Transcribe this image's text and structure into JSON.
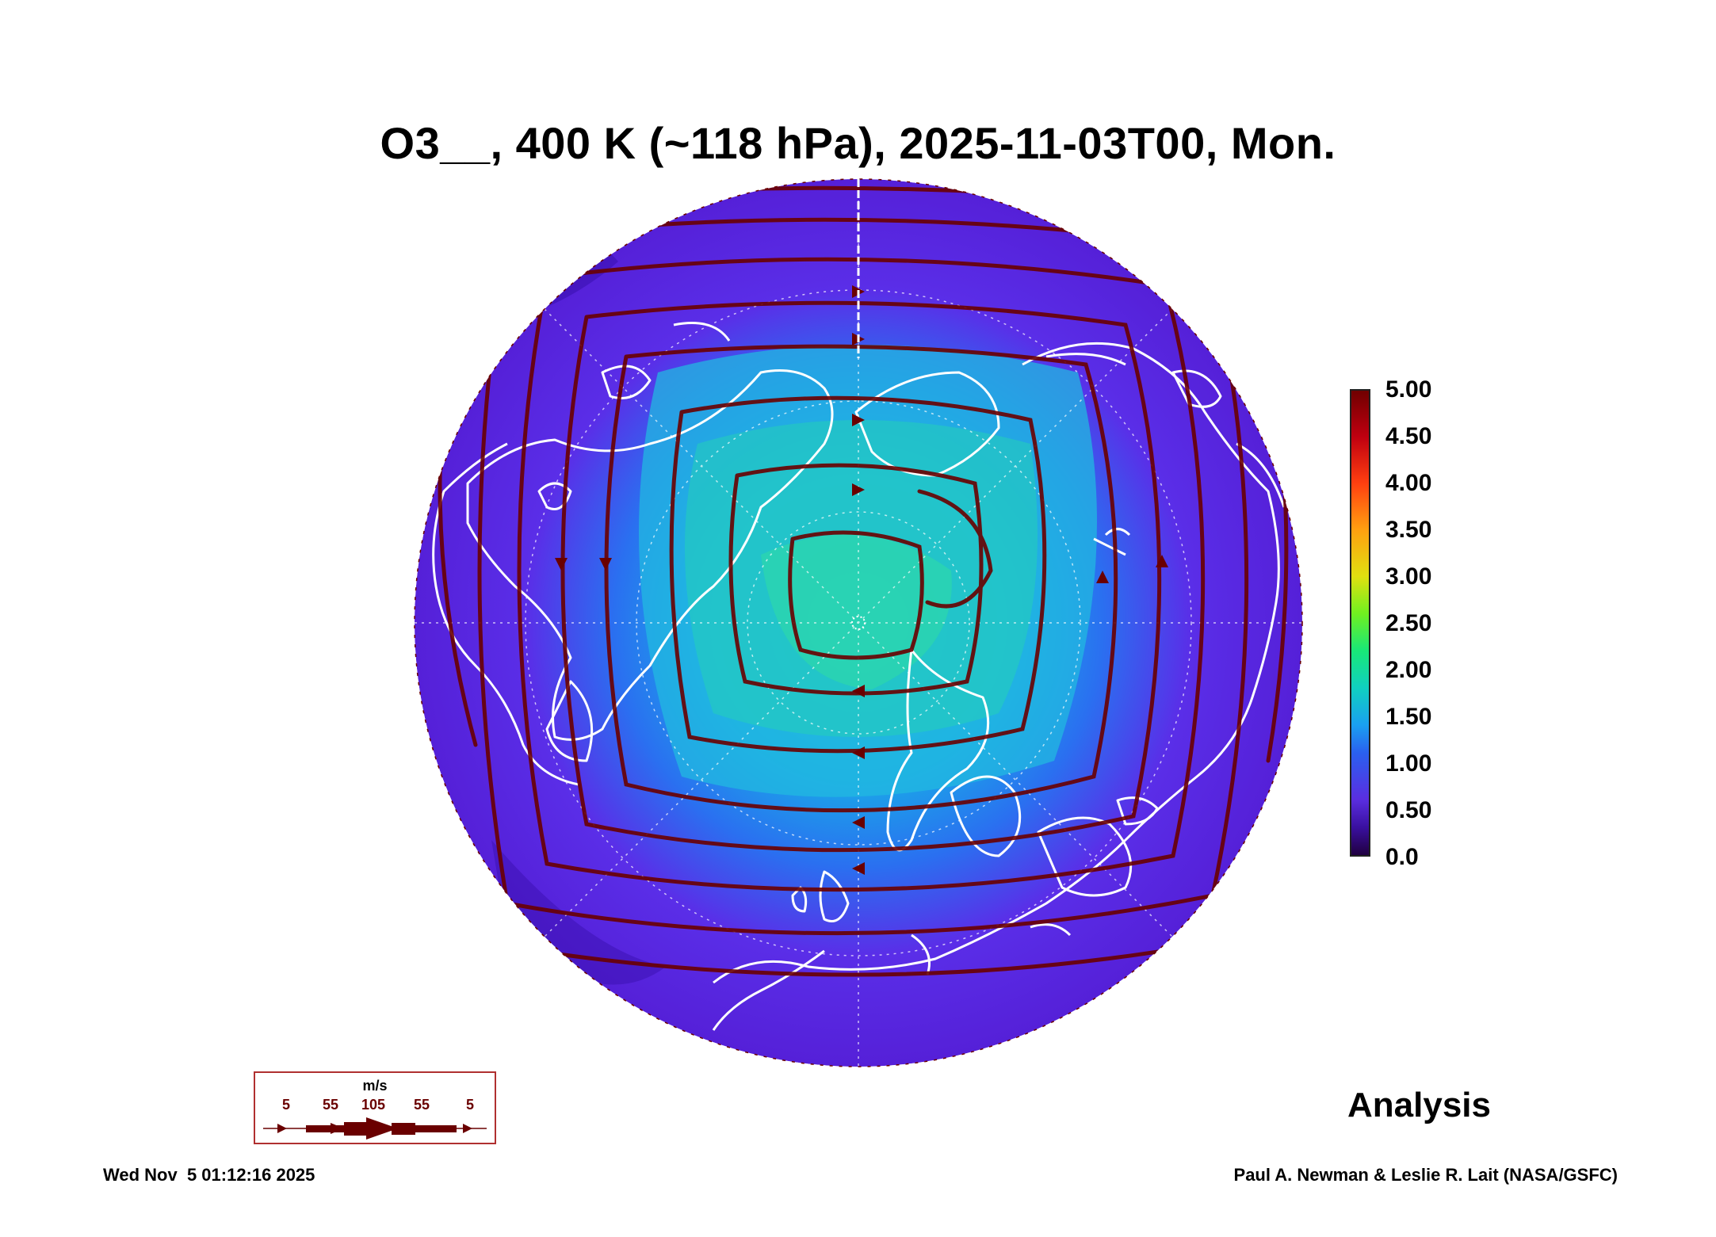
{
  "title": "O3__, 400 K (~118 hPa), 2025-11-03T00, Mon.",
  "colorbar": {
    "labels": [
      "5.00",
      "4.50",
      "4.00",
      "3.50",
      "3.00",
      "2.50",
      "2.00",
      "1.50",
      "1.00",
      "0.50",
      "0.0"
    ]
  },
  "legend": {
    "unit": "m/s",
    "values": [
      "5",
      "55",
      "105",
      "55",
      "5"
    ]
  },
  "analysis_label": "Analysis",
  "timestamp": "Wed Nov  5 01:12:16 2025",
  "credit": "Paul A. Newman & Leslie R. Lait (NASA/GSFC)",
  "colors": {
    "background_field": "#5a26e0",
    "high_ozone": "#20c8d8",
    "streamline": "#6a0000",
    "coastline": "#ffffff"
  }
}
